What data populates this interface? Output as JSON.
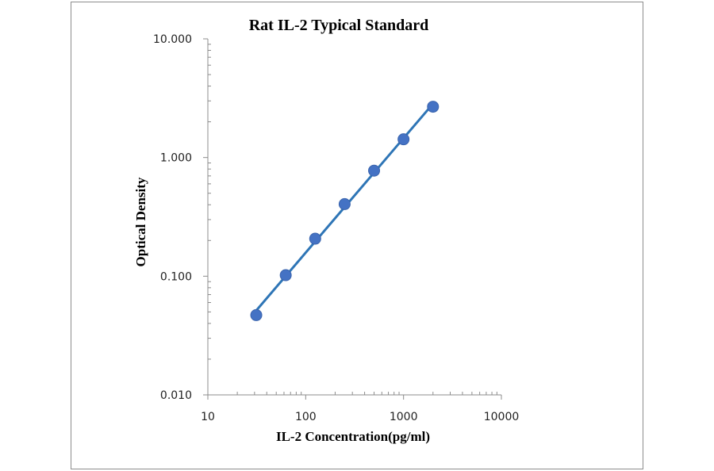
{
  "chart_data": {
    "type": "scatter",
    "title": "Rat IL-2 Typical Standard",
    "xlabel": "IL-2 Concentration(pg/ml)",
    "ylabel": "Optical Density",
    "x_scale": "log",
    "y_scale": "log",
    "xlim": [
      10,
      10000
    ],
    "ylim": [
      0.01,
      10
    ],
    "x_ticks": [
      10,
      100,
      1000,
      10000
    ],
    "x_tick_labels": [
      "10",
      "100",
      "1000",
      "10000"
    ],
    "y_ticks": [
      0.01,
      0.1,
      1,
      10
    ],
    "y_tick_labels": [
      "0.010",
      "0.100",
      "1.000",
      "10.000"
    ],
    "grid": false,
    "legend": "none",
    "series": [
      {
        "x": [
          31.25,
          62.5,
          125,
          250,
          500,
          1000,
          2000
        ],
        "y": [
          0.047,
          0.102,
          0.207,
          0.405,
          0.775,
          1.425,
          2.68
        ],
        "color": "#4472c4",
        "trendline": {
          "type": "power",
          "color": "#2e75b6"
        }
      }
    ]
  }
}
